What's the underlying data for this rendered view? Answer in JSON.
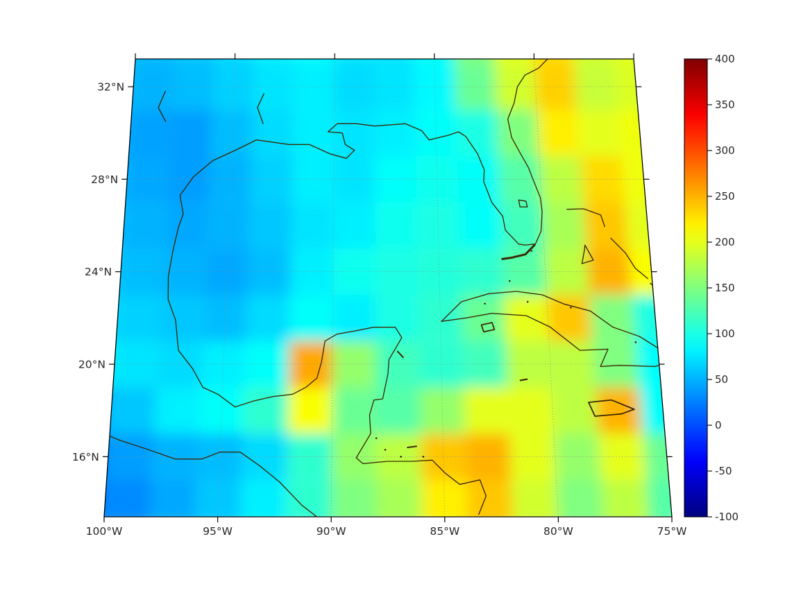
{
  "figure": {
    "background": "#ffffff"
  },
  "chart_data": {
    "type": "heatmap",
    "title": "",
    "projection": "conic-trapezoid",
    "lon_min": -100,
    "lon_max": -75,
    "lat_min": 13.4,
    "lat_max": 33.2,
    "grid_on": true,
    "colormap": "jet",
    "color_min": -100,
    "color_max": 400,
    "colorbar_ticks": [
      {
        "value": 400,
        "label": "400"
      },
      {
        "value": 350,
        "label": "350"
      },
      {
        "value": 300,
        "label": "300"
      },
      {
        "value": 250,
        "label": "250"
      },
      {
        "value": 200,
        "label": "200"
      },
      {
        "value": 150,
        "label": "150"
      },
      {
        "value": 100,
        "label": "100"
      },
      {
        "value": 50,
        "label": "50"
      },
      {
        "value": 0,
        "label": "0"
      },
      {
        "value": -50,
        "label": "-50"
      },
      {
        "value": -100,
        "label": "-100"
      }
    ],
    "lat_ticks": [
      {
        "value": 32,
        "label": "32°N"
      },
      {
        "value": 28,
        "label": "28°N"
      },
      {
        "value": 24,
        "label": "24°N"
      },
      {
        "value": 20,
        "label": "20°N"
      },
      {
        "value": 16,
        "label": "16°N"
      }
    ],
    "lon_ticks": [
      {
        "value": -100,
        "label": "100°W"
      },
      {
        "value": -95,
        "label": "95°W"
      },
      {
        "value": -90,
        "label": "90°W"
      },
      {
        "value": -85,
        "label": "85°W"
      },
      {
        "value": -80,
        "label": "80°W"
      },
      {
        "value": -75,
        "label": "75°W"
      }
    ],
    "graticule": {
      "lat_lines": [
        16,
        20,
        24,
        28,
        32
      ],
      "lon_lines": [
        -95,
        -90,
        -85,
        -80
      ]
    },
    "heat_grid": {
      "lons": [
        -101,
        -99,
        -97,
        -95,
        -93,
        -91,
        -89,
        -87,
        -85,
        -83,
        -81,
        -79,
        -77,
        -75,
        -73
      ],
      "lats": [
        34,
        32,
        30,
        28,
        26,
        24,
        22,
        20,
        18,
        16,
        14
      ],
      "values": [
        [
          60,
          55,
          60,
          70,
          80,
          85,
          75,
          75,
          90,
          150,
          200,
          230,
          190,
          200,
          205
        ],
        [
          55,
          50,
          55,
          65,
          75,
          80,
          70,
          75,
          85,
          140,
          190,
          235,
          185,
          195,
          200
        ],
        [
          45,
          42,
          40,
          55,
          70,
          80,
          75,
          80,
          90,
          100,
          150,
          220,
          200,
          205,
          200
        ],
        [
          50,
          45,
          40,
          50,
          65,
          80,
          75,
          90,
          95,
          90,
          130,
          180,
          230,
          205,
          195
        ],
        [
          55,
          50,
          45,
          50,
          60,
          75,
          80,
          95,
          100,
          90,
          120,
          170,
          240,
          200,
          190
        ],
        [
          60,
          55,
          50,
          45,
          55,
          80,
          95,
          100,
          105,
          110,
          130,
          180,
          250,
          210,
          90
        ],
        [
          70,
          65,
          60,
          55,
          70,
          90,
          80,
          100,
          110,
          140,
          200,
          240,
          150,
          100,
          60
        ],
        [
          80,
          75,
          70,
          80,
          90,
          255,
          160,
          120,
          110,
          120,
          180,
          180,
          150,
          90,
          70
        ],
        [
          50,
          60,
          80,
          90,
          110,
          210,
          140,
          130,
          160,
          200,
          200,
          180,
          250,
          90,
          70
        ],
        [
          30,
          40,
          50,
          55,
          70,
          110,
          160,
          180,
          240,
          250,
          200,
          160,
          200,
          140,
          110
        ],
        [
          25,
          30,
          45,
          60,
          80,
          110,
          150,
          170,
          220,
          240,
          190,
          150,
          180,
          130,
          100
        ]
      ]
    },
    "coastlines": {
      "color": "#3c2804",
      "paths": {
        "us_gulf_atlantic": [
          [
            -97.4,
            25.9
          ],
          [
            -97.2,
            26.5
          ],
          [
            -97.4,
            27.3
          ],
          [
            -96.8,
            28.1
          ],
          [
            -95.9,
            28.8
          ],
          [
            -94.7,
            29.3
          ],
          [
            -93.8,
            29.7
          ],
          [
            -92.2,
            29.5
          ],
          [
            -91.2,
            29.5
          ],
          [
            -90.2,
            29.1
          ],
          [
            -89.4,
            28.9
          ],
          [
            -89.0,
            29.25
          ],
          [
            -89.45,
            29.5
          ],
          [
            -89.6,
            30.0
          ],
          [
            -90.3,
            30.05
          ],
          [
            -89.85,
            30.4
          ],
          [
            -88.9,
            30.4
          ],
          [
            -88.0,
            30.3
          ],
          [
            -86.5,
            30.4
          ],
          [
            -85.7,
            30.1
          ],
          [
            -85.35,
            29.7
          ],
          [
            -84.4,
            29.9
          ],
          [
            -83.9,
            30.05
          ],
          [
            -83.55,
            29.85
          ],
          [
            -83.0,
            29.1
          ],
          [
            -82.7,
            28.4
          ],
          [
            -82.75,
            27.9
          ],
          [
            -82.4,
            27.0
          ],
          [
            -81.9,
            26.4
          ],
          [
            -81.8,
            25.8
          ],
          [
            -81.2,
            25.2
          ],
          [
            -80.9,
            25.15
          ],
          [
            -80.4,
            25.2
          ],
          [
            -80.1,
            25.75
          ],
          [
            -80.0,
            26.6
          ],
          [
            -80.05,
            27.2
          ],
          [
            -80.4,
            28.1
          ],
          [
            -80.55,
            28.5
          ],
          [
            -80.9,
            29.1
          ],
          [
            -81.3,
            29.8
          ],
          [
            -81.45,
            30.6
          ],
          [
            -81.1,
            31.3
          ],
          [
            -80.9,
            32.0
          ],
          [
            -80.5,
            32.5
          ],
          [
            -79.8,
            32.8
          ],
          [
            -79.2,
            33.3
          ]
        ],
        "mexico_centralamerica": [
          [
            -97.4,
            25.9
          ],
          [
            -97.6,
            24.9
          ],
          [
            -97.75,
            23.8
          ],
          [
            -97.7,
            22.8
          ],
          [
            -97.3,
            21.9
          ],
          [
            -97.1,
            20.6
          ],
          [
            -96.4,
            19.8
          ],
          [
            -95.9,
            19.0
          ],
          [
            -95.2,
            18.7
          ],
          [
            -94.4,
            18.15
          ],
          [
            -93.6,
            18.4
          ],
          [
            -92.7,
            18.6
          ],
          [
            -91.8,
            18.7
          ],
          [
            -91.2,
            19.0
          ],
          [
            -90.7,
            19.4
          ],
          [
            -90.5,
            20.1
          ],
          [
            -90.35,
            21.0
          ],
          [
            -89.8,
            21.3
          ],
          [
            -88.9,
            21.45
          ],
          [
            -88.1,
            21.6
          ],
          [
            -87.1,
            21.6
          ],
          [
            -86.8,
            21.15
          ],
          [
            -87.4,
            20.2
          ],
          [
            -87.45,
            19.6
          ],
          [
            -87.7,
            18.5
          ],
          [
            -88.1,
            18.45
          ],
          [
            -88.3,
            17.8
          ],
          [
            -88.25,
            17.0
          ],
          [
            -88.9,
            15.95
          ],
          [
            -88.6,
            15.7
          ],
          [
            -87.5,
            15.8
          ],
          [
            -86.4,
            15.8
          ],
          [
            -85.5,
            15.85
          ],
          [
            -84.95,
            15.3
          ],
          [
            -84.3,
            14.8
          ],
          [
            -83.4,
            15.0
          ],
          [
            -83.15,
            14.3
          ],
          [
            -83.5,
            13.5
          ]
        ],
        "pacific_coast": [
          [
            -100.8,
            17.2
          ],
          [
            -99.5,
            16.7
          ],
          [
            -98.2,
            16.3
          ],
          [
            -97.0,
            15.9
          ],
          [
            -95.8,
            15.9
          ],
          [
            -95.0,
            16.2
          ],
          [
            -94.1,
            16.2
          ],
          [
            -93.2,
            15.6
          ],
          [
            -92.3,
            14.9
          ],
          [
            -91.3,
            13.9
          ],
          [
            -90.5,
            13.3
          ]
        ],
        "cuba": [
          [
            -84.95,
            21.85
          ],
          [
            -84.0,
            22.7
          ],
          [
            -82.7,
            23.05
          ],
          [
            -81.4,
            23.15
          ],
          [
            -80.2,
            23.0
          ],
          [
            -79.2,
            22.6
          ],
          [
            -78.0,
            22.3
          ],
          [
            -77.0,
            21.6
          ],
          [
            -75.8,
            21.2
          ],
          [
            -74.2,
            20.2
          ],
          [
            -75.2,
            19.9
          ],
          [
            -76.8,
            19.95
          ],
          [
            -77.7,
            19.9
          ],
          [
            -77.3,
            20.65
          ],
          [
            -78.6,
            20.6
          ],
          [
            -79.9,
            21.6
          ],
          [
            -81.0,
            22.1
          ],
          [
            -82.6,
            22.2
          ],
          [
            -83.8,
            22.0
          ],
          [
            -84.95,
            21.85
          ]
        ],
        "isla_juventud": [
          [
            -83.1,
            21.7
          ],
          [
            -82.6,
            21.8
          ],
          [
            -82.5,
            21.5
          ],
          [
            -83.0,
            21.4
          ],
          [
            -83.1,
            21.7
          ]
        ],
        "jamaica": [
          [
            -78.35,
            18.35
          ],
          [
            -77.3,
            18.45
          ],
          [
            -76.3,
            18.05
          ],
          [
            -76.9,
            17.85
          ],
          [
            -78.1,
            17.75
          ],
          [
            -78.35,
            18.35
          ]
        ],
        "haiti_northwest": [
          [
            -73.0,
            19.75
          ],
          [
            -74.45,
            19.68
          ],
          [
            -74.35,
            19.95
          ],
          [
            -73.2,
            20.05
          ]
        ],
        "haiti_southwest": [
          [
            -73.0,
            18.3
          ],
          [
            -74.45,
            18.35
          ],
          [
            -74.15,
            18.65
          ],
          [
            -73.0,
            18.62
          ]
        ],
        "grand_bahama_abaco": [
          [
            -78.8,
            26.7
          ],
          [
            -78.0,
            26.72
          ],
          [
            -77.2,
            26.45
          ],
          [
            -77.05,
            25.95
          ]
        ],
        "andros": [
          [
            -78.05,
            25.15
          ],
          [
            -77.7,
            24.5
          ],
          [
            -78.25,
            24.35
          ],
          [
            -78.1,
            24.9
          ],
          [
            -78.05,
            25.15
          ]
        ],
        "eleuthera_exuma": [
          [
            -76.8,
            25.45
          ],
          [
            -76.15,
            24.8
          ],
          [
            -75.75,
            24.15
          ],
          [
            -75.2,
            23.7
          ]
        ],
        "long_island": [
          [
            -75.1,
            23.5
          ],
          [
            -74.5,
            23.0
          ],
          [
            -74.2,
            22.7
          ]
        ],
        "florida_keys": [
          [
            -80.45,
            25.15
          ],
          [
            -80.9,
            24.75
          ],
          [
            -81.6,
            24.6
          ],
          [
            -82.0,
            24.55
          ]
        ],
        "lake_okeechobee": [
          [
            -81.1,
            27.1
          ],
          [
            -80.75,
            27.05
          ],
          [
            -80.7,
            26.8
          ],
          [
            -81.05,
            26.8
          ],
          [
            -81.1,
            27.1
          ]
        ],
        "cozumel": [
          [
            -87.0,
            20.55
          ],
          [
            -86.75,
            20.3
          ]
        ],
        "cayman": [
          [
            -81.4,
            19.3
          ],
          [
            -81.1,
            19.35
          ]
        ],
        "roatan": [
          [
            -86.6,
            16.4
          ],
          [
            -86.2,
            16.45
          ]
        ],
        "texas_river": [
          [
            -98.4,
            31.8
          ],
          [
            -98.7,
            31.1
          ],
          [
            -98.3,
            30.5
          ]
        ],
        "louisiana_river": [
          [
            -93.5,
            31.7
          ],
          [
            -93.8,
            31.1
          ],
          [
            -93.5,
            30.4
          ]
        ]
      },
      "specks": [
        [
          -88.0,
          16.8
        ],
        [
          -87.6,
          16.3
        ],
        [
          -86.9,
          16.0
        ],
        [
          -82.9,
          22.62
        ],
        [
          -80.9,
          22.7
        ],
        [
          -78.9,
          22.45
        ],
        [
          -76.0,
          20.95
        ],
        [
          -81.7,
          23.6
        ],
        [
          -80.6,
          24.9
        ],
        [
          -85.9,
          16.0
        ]
      ]
    }
  }
}
